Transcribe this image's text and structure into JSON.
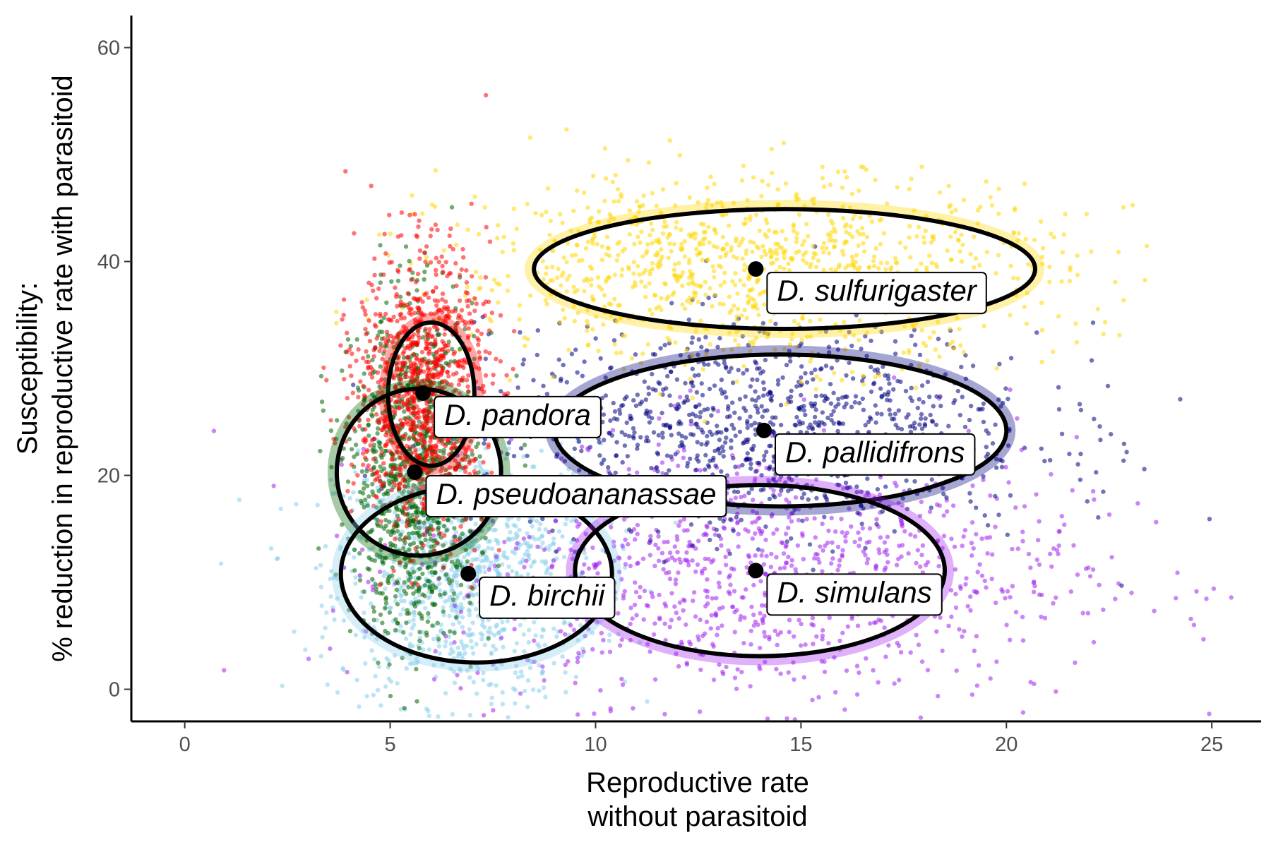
{
  "chart_data": {
    "type": "scatter",
    "xlabel_lines": [
      "Reproductive rate",
      "without parasitoid"
    ],
    "ylabel_lines": [
      "Susceptibility:",
      "% reduction in reproductive rate with parasitoid"
    ],
    "xlim": [
      -1.3,
      26.2
    ],
    "ylim": [
      -3,
      63
    ],
    "xticks": [
      0,
      5,
      10,
      15,
      20,
      25
    ],
    "yticks": [
      0,
      20,
      40,
      60
    ],
    "grid": false,
    "legend": "none",
    "series": [
      {
        "name": "D. pandora",
        "color": "#ff0000",
        "mean": {
          "x": 5.8,
          "y": 27.7
        },
        "ellipse": {
          "cx": 6.0,
          "cy": 27.6,
          "rx": 1.05,
          "ry": 6.7
        },
        "cloud_sd": {
          "x": 0.8,
          "y": 6.5
        }
      },
      {
        "name": "D. pseudoananassae",
        "color": "#006400",
        "mean": {
          "x": 5.6,
          "y": 20.3
        },
        "ellipse": {
          "cx": 5.7,
          "cy": 20.3,
          "rx": 2.0,
          "ry": 7.8
        },
        "cloud_sd": {
          "x": 0.75,
          "y": 7.5
        }
      },
      {
        "name": "D. birchii",
        "color": "#87ceeb",
        "mean": {
          "x": 6.9,
          "y": 10.8
        },
        "ellipse": {
          "cx": 7.1,
          "cy": 10.8,
          "rx": 3.3,
          "ry": 8.3
        },
        "cloud_sd": {
          "x": 1.6,
          "y": 6.0
        }
      },
      {
        "name": "D. sulfurigaster",
        "color": "#ffd700",
        "mean": {
          "x": 13.9,
          "y": 39.3
        },
        "ellipse": {
          "cx": 14.6,
          "cy": 39.3,
          "rx": 6.1,
          "ry": 5.6
        },
        "cloud_sd": {
          "x": 3.7,
          "y": 4.3
        }
      },
      {
        "name": "D. pallidifrons",
        "color": "#000080",
        "mean": {
          "x": 14.1,
          "y": 24.2
        },
        "ellipse": {
          "cx": 14.5,
          "cy": 24.2,
          "rx": 5.5,
          "ry": 7.1
        },
        "cloud_sd": {
          "x": 3.4,
          "y": 4.8
        }
      },
      {
        "name": "D. simulans",
        "color": "#a020f0",
        "mean": {
          "x": 13.9,
          "y": 11.1
        },
        "ellipse": {
          "cx": 14.0,
          "cy": 11.1,
          "rx": 4.5,
          "ry": 8.0
        },
        "cloud_sd": {
          "x": 3.9,
          "y": 6.2
        }
      }
    ],
    "labels": [
      {
        "text": "D. sulfurigaster",
        "x": 13.9,
        "y": 39.3
      },
      {
        "text": "D. pandora",
        "x": 5.8,
        "y": 27.7
      },
      {
        "text": "D. pallidifrons",
        "x": 14.1,
        "y": 24.2
      },
      {
        "text": "D. pseudoananassae",
        "x": 5.6,
        "y": 20.3
      },
      {
        "text": "D. simulans",
        "x": 13.9,
        "y": 11.1
      },
      {
        "text": "D. birchii",
        "x": 6.9,
        "y": 10.8
      }
    ]
  }
}
